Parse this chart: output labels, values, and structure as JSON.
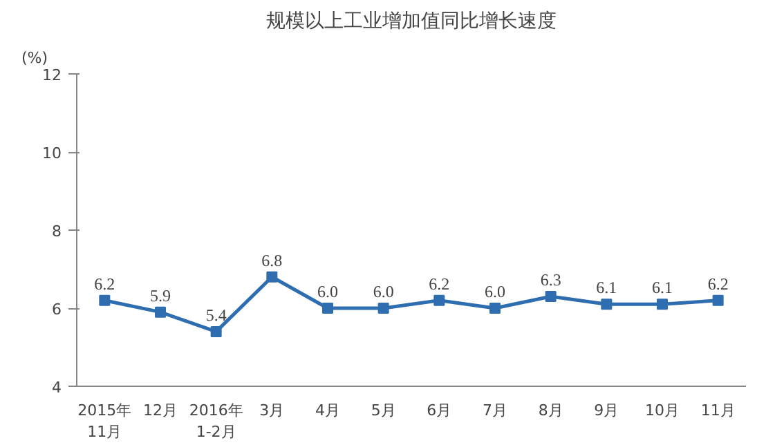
{
  "chart_data": {
    "type": "line",
    "title": "规模以上工业增加值同比增长速度",
    "ylabel": "(%)",
    "categories": [
      "2015年\n11月",
      "12月",
      "2016年\n1-2月",
      "3月",
      "4月",
      "5月",
      "6月",
      "7月",
      "8月",
      "9月",
      "10月",
      "11月"
    ],
    "series": [
      {
        "color": "#2e6eb0",
        "values": [
          6.2,
          5.9,
          5.4,
          6.8,
          6.0,
          6.0,
          6.2,
          6.0,
          6.3,
          6.1,
          6.1,
          6.2
        ],
        "value_labels": [
          "6.2",
          "5.9",
          "5.4",
          "6.8",
          "6.0",
          "6.0",
          "6.2",
          "6.0",
          "6.3",
          "6.1",
          "6.1",
          "6.2"
        ]
      }
    ],
    "ylim": [
      4,
      12
    ],
    "yticks": [
      4,
      6,
      8,
      10,
      12
    ],
    "grid": false,
    "marker": "square",
    "line_style": "solid"
  }
}
